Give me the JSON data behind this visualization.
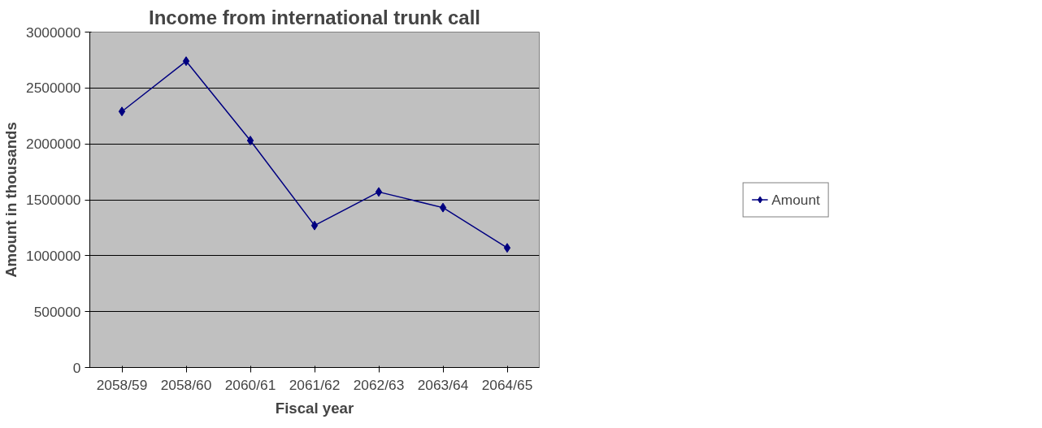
{
  "chart_data": {
    "type": "line",
    "title": "Income from international trunk call",
    "xlabel": "Fiscal year",
    "ylabel": "Amount in thousands",
    "categories": [
      "2058/59",
      "2058/60",
      "2060/61",
      "2061/62",
      "2062/63",
      "2063/64",
      "2064/65"
    ],
    "series": [
      {
        "name": "Amount",
        "color": "#000080",
        "values": [
          2290000,
          2740000,
          2030000,
          1270000,
          1570000,
          1430000,
          1070000
        ]
      }
    ],
    "ylim": [
      0,
      3000000
    ],
    "yticks": [
      0,
      500000,
      1000000,
      1500000,
      2000000,
      2500000,
      3000000
    ],
    "grid": "y",
    "legend": "right",
    "marker": "diamond",
    "line_style": "solid"
  }
}
